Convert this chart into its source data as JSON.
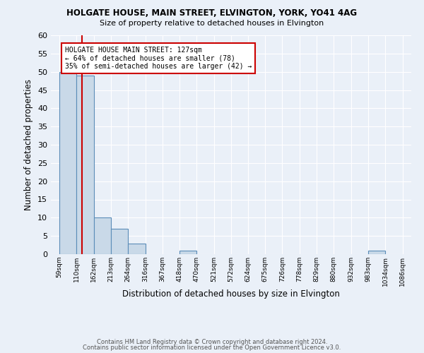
{
  "title1": "HOLGATE HOUSE, MAIN STREET, ELVINGTON, YORK, YO41 4AG",
  "title2": "Size of property relative to detached houses in Elvington",
  "xlabel": "Distribution of detached houses by size in Elvington",
  "ylabel": "Number of detached properties",
  "bin_edges": [
    59,
    110,
    162,
    213,
    264,
    316,
    367,
    418,
    470,
    521,
    572,
    624,
    675,
    726,
    778,
    829,
    880,
    932,
    983,
    1034,
    1086
  ],
  "bin_labels": [
    "59sqm",
    "110sqm",
    "162sqm",
    "213sqm",
    "264sqm",
    "316sqm",
    "367sqm",
    "418sqm",
    "470sqm",
    "521sqm",
    "572sqm",
    "624sqm",
    "675sqm",
    "726sqm",
    "778sqm",
    "829sqm",
    "880sqm",
    "932sqm",
    "983sqm",
    "1034sqm",
    "1086sqm"
  ],
  "counts": [
    50,
    49,
    10,
    7,
    3,
    0,
    0,
    1,
    0,
    0,
    0,
    0,
    0,
    0,
    0,
    0,
    0,
    0,
    1,
    0
  ],
  "bar_facecolor": "#c9d9e8",
  "bar_edgecolor": "#5b8db8",
  "property_line_x": 127,
  "property_line_color": "#cc0000",
  "annotation_text": "HOLGATE HOUSE MAIN STREET: 127sqm\n← 64% of detached houses are smaller (78)\n35% of semi-detached houses are larger (42) →",
  "annotation_box_edgecolor": "#cc0000",
  "annotation_box_facecolor": "#ffffff",
  "ylim": [
    0,
    60
  ],
  "yticks": [
    0,
    5,
    10,
    15,
    20,
    25,
    30,
    35,
    40,
    45,
    50,
    55,
    60
  ],
  "background_color": "#eaf0f8",
  "grid_color": "#ffffff",
  "footer1": "Contains HM Land Registry data © Crown copyright and database right 2024.",
  "footer2": "Contains public sector information licensed under the Open Government Licence v3.0."
}
